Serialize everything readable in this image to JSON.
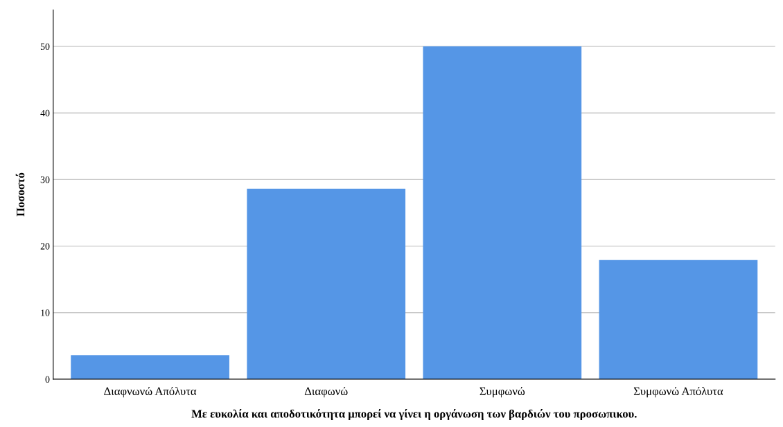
{
  "chart_data": {
    "type": "bar",
    "categories": [
      "Διαφνωνώ Απόλυτα",
      "Διαφωνώ",
      "Συμφωνώ",
      "Συμφωνώ Απόλυτα"
    ],
    "values": [
      3.6,
      28.6,
      50,
      17.9
    ],
    "color": "#5596e6",
    "xlabel": "Με ευκολία και αποδοτικότητα μπορεί να γίνει η οργάνωση των βαρδιών του προσωπικου.",
    "ylabel": "Ποσοστό",
    "ylim": [
      0,
      55.5
    ],
    "yticks": [
      0,
      10,
      20,
      30,
      40,
      50
    ],
    "grid": "y"
  }
}
